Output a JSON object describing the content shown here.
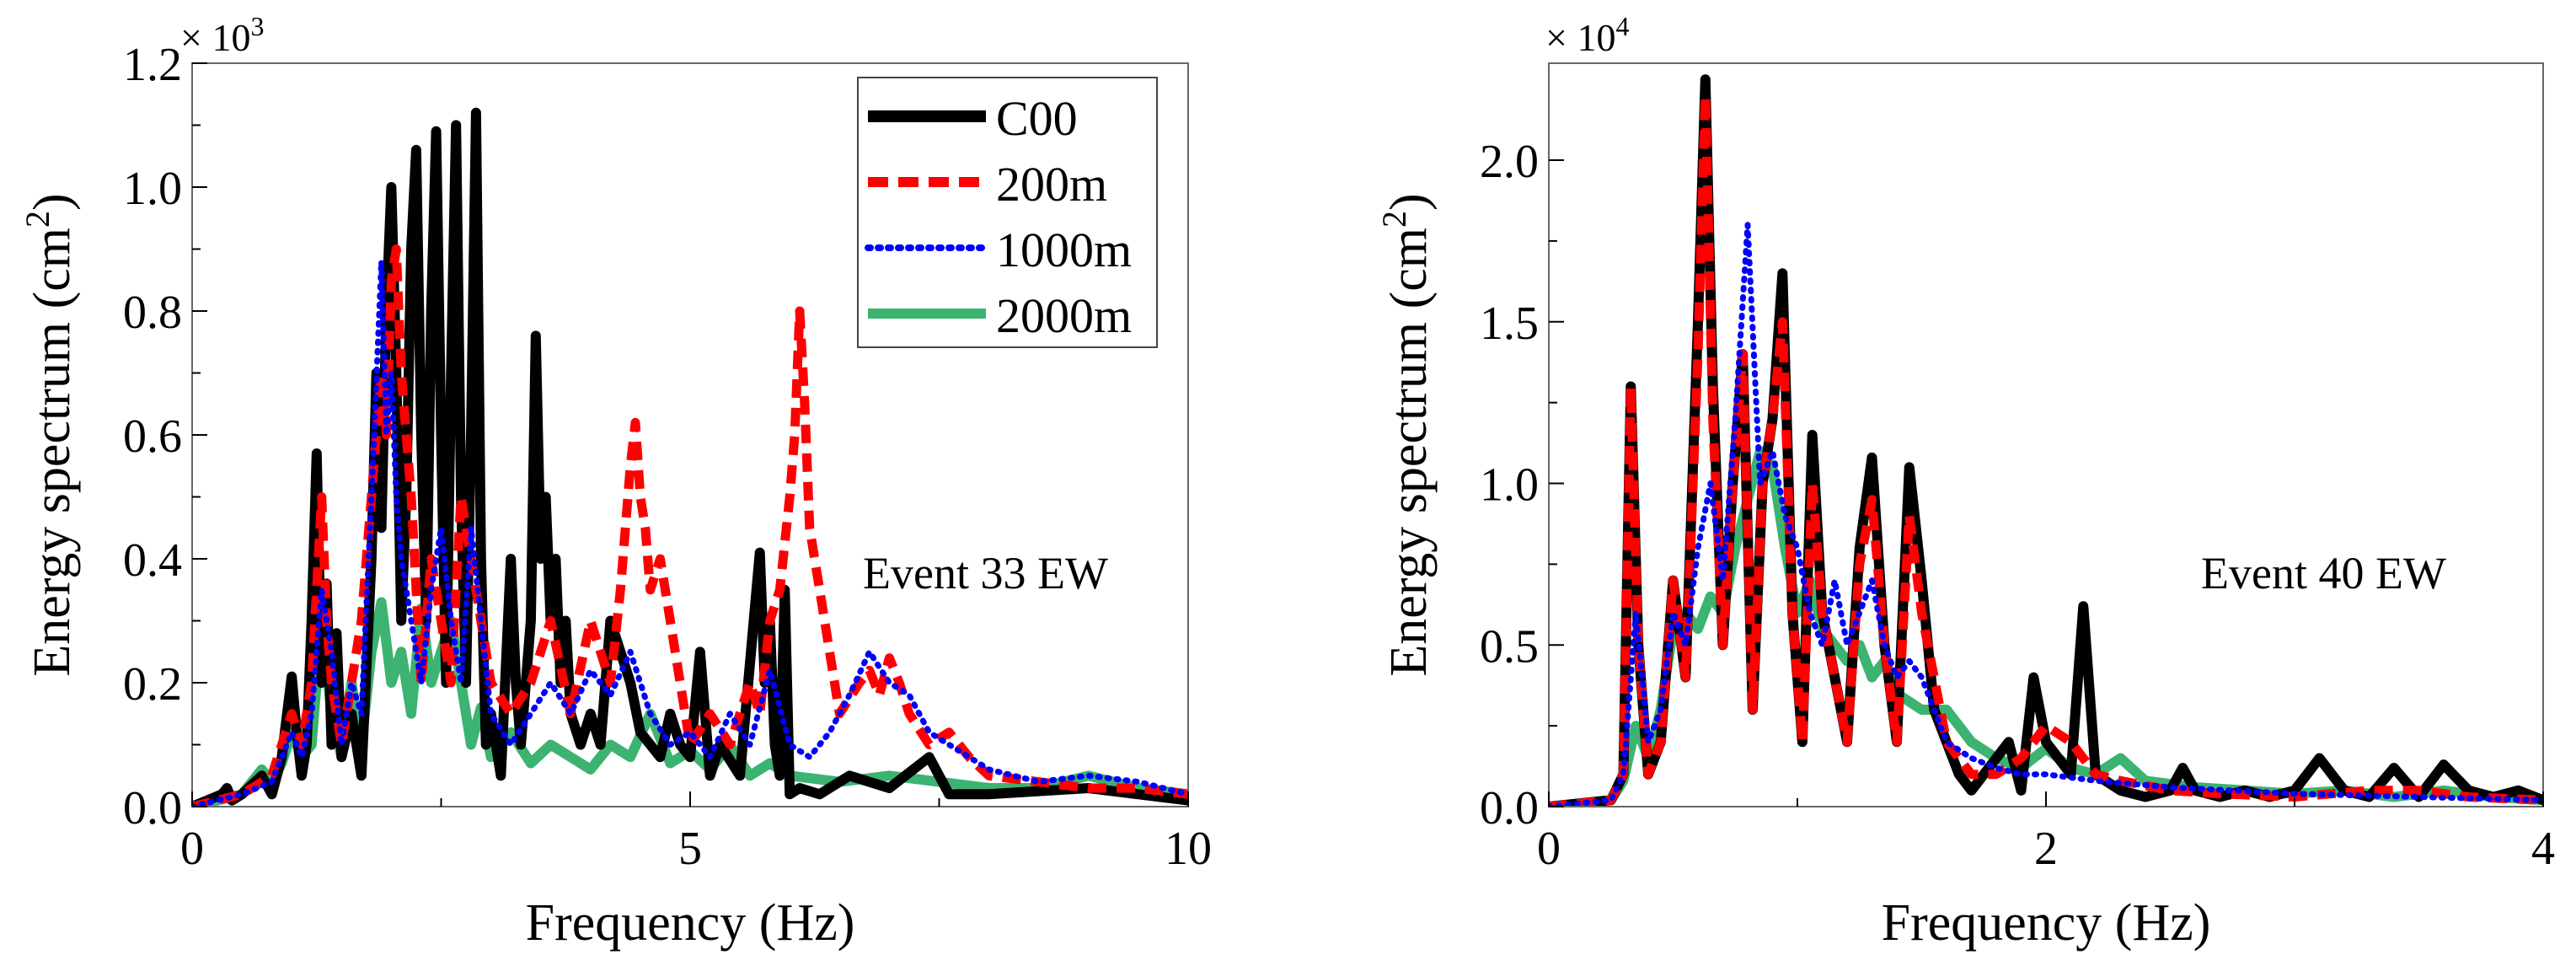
{
  "chart_data": [
    {
      "type": "line",
      "xlabel": "Frequency (Hz)",
      "ylabel_main": "Energy spectrum (cm",
      "ylabel_sup": "2",
      "ylabel_tail": ")",
      "multiplier_base": "× 10",
      "multiplier_exp": "3",
      "annotation": "Event 33 EW",
      "xlim": [
        0,
        10
      ],
      "ylim": [
        0,
        1.2
      ],
      "x_ticks": [
        0,
        5,
        10
      ],
      "x_tick_labels": [
        "0",
        "5",
        "10"
      ],
      "y_ticks": [
        0,
        0.2,
        0.4,
        0.6,
        0.8,
        1.0,
        1.2
      ],
      "y_tick_labels": [
        "0.0",
        "0.2",
        "0.4",
        "0.6",
        "0.8",
        "1.0",
        "1.2"
      ],
      "legend_position": "top-right",
      "series": [
        {
          "name": "C00",
          "color": "#000000",
          "dash": "solid",
          "x": [
            0,
            0.3,
            0.35,
            0.4,
            0.5,
            0.7,
            0.8,
            0.9,
            1.0,
            1.05,
            1.1,
            1.15,
            1.2,
            1.25,
            1.3,
            1.35,
            1.4,
            1.45,
            1.5,
            1.6,
            1.7,
            1.8,
            1.85,
            1.9,
            1.95,
            2.0,
            2.05,
            2.1,
            2.15,
            2.2,
            2.25,
            2.3,
            2.35,
            2.4,
            2.45,
            2.5,
            2.55,
            2.6,
            2.65,
            2.7,
            2.75,
            2.8,
            2.85,
            2.9,
            2.95,
            3.0,
            3.1,
            3.2,
            3.25,
            3.3,
            3.4,
            3.45,
            3.5,
            3.55,
            3.6,
            3.65,
            3.7,
            3.75,
            3.8,
            3.9,
            4.0,
            4.1,
            4.2,
            4.3,
            4.4,
            4.5,
            4.6,
            4.7,
            4.8,
            4.9,
            5.0,
            5.1,
            5.2,
            5.3,
            5.5,
            5.7,
            5.75,
            5.8,
            5.85,
            5.9,
            5.95,
            6.0,
            6.1,
            6.3,
            6.6,
            7.0,
            7.4,
            7.5,
            7.6,
            8.0,
            9.0,
            9.5,
            10.0
          ],
          "y": [
            0,
            0.02,
            0.03,
            0.01,
            0.02,
            0.05,
            0.02,
            0.08,
            0.21,
            0.12,
            0.05,
            0.1,
            0.3,
            0.57,
            0.2,
            0.36,
            0.1,
            0.28,
            0.08,
            0.15,
            0.05,
            0.4,
            0.7,
            0.45,
            0.8,
            1.0,
            0.7,
            0.3,
            0.5,
            0.9,
            1.06,
            0.6,
            0.3,
            0.8,
            1.09,
            0.6,
            0.2,
            0.7,
            1.1,
            0.5,
            0.2,
            0.6,
            1.12,
            0.4,
            0.1,
            0.15,
            0.05,
            0.4,
            0.2,
            0.1,
            0.3,
            0.76,
            0.4,
            0.5,
            0.3,
            0.4,
            0.2,
            0.3,
            0.15,
            0.1,
            0.15,
            0.1,
            0.3,
            0.25,
            0.2,
            0.12,
            0.1,
            0.08,
            0.15,
            0.1,
            0.08,
            0.25,
            0.05,
            0.1,
            0.05,
            0.41,
            0.2,
            0.3,
            0.1,
            0.05,
            0.35,
            0.02,
            0.03,
            0.02,
            0.05,
            0.03,
            0.08,
            0.05,
            0.02,
            0.02,
            0.03,
            0.02,
            0.01
          ]
        },
        {
          "name": "200m",
          "color": "#ff0000",
          "dash": "dashed",
          "x": [
            0,
            0.5,
            0.8,
            1.0,
            1.1,
            1.2,
            1.3,
            1.35,
            1.4,
            1.5,
            1.7,
            1.8,
            1.9,
            1.95,
            2.0,
            2.05,
            2.1,
            2.2,
            2.3,
            2.4,
            2.5,
            2.6,
            2.7,
            2.8,
            2.9,
            3.0,
            3.2,
            3.4,
            3.6,
            3.8,
            4.0,
            4.2,
            4.3,
            4.4,
            4.45,
            4.5,
            4.55,
            4.6,
            4.7,
            4.8,
            5.0,
            5.2,
            5.4,
            5.6,
            5.7,
            5.8,
            5.9,
            6.0,
            6.05,
            6.1,
            6.15,
            6.2,
            6.3,
            6.5,
            6.7,
            6.8,
            6.9,
            7.0,
            7.1,
            7.2,
            7.4,
            7.6,
            7.8,
            8.0,
            8.5,
            9.0,
            9.5,
            10.0
          ],
          "y": [
            0,
            0.02,
            0.05,
            0.15,
            0.1,
            0.2,
            0.5,
            0.3,
            0.2,
            0.1,
            0.3,
            0.5,
            0.7,
            0.6,
            0.85,
            0.9,
            0.7,
            0.5,
            0.2,
            0.4,
            0.3,
            0.2,
            0.5,
            0.4,
            0.3,
            0.2,
            0.15,
            0.2,
            0.3,
            0.15,
            0.3,
            0.2,
            0.35,
            0.55,
            0.62,
            0.5,
            0.45,
            0.35,
            0.4,
            0.3,
            0.1,
            0.15,
            0.1,
            0.2,
            0.15,
            0.3,
            0.35,
            0.5,
            0.6,
            0.8,
            0.65,
            0.45,
            0.35,
            0.15,
            0.2,
            0.22,
            0.18,
            0.24,
            0.2,
            0.15,
            0.1,
            0.12,
            0.08,
            0.05,
            0.04,
            0.03,
            0.03,
            0.02
          ]
        },
        {
          "name": "1000m",
          "color": "#0000ff",
          "dash": "dotted",
          "x": [
            0,
            0.5,
            0.8,
            1.0,
            1.1,
            1.2,
            1.3,
            1.4,
            1.5,
            1.6,
            1.7,
            1.8,
            1.9,
            1.95,
            2.0,
            2.05,
            2.1,
            2.2,
            2.3,
            2.4,
            2.5,
            2.6,
            2.7,
            2.8,
            2.9,
            3.0,
            3.2,
            3.4,
            3.6,
            3.8,
            4.0,
            4.2,
            4.4,
            4.6,
            4.8,
            5.0,
            5.2,
            5.4,
            5.6,
            5.8,
            6.0,
            6.2,
            6.4,
            6.6,
            6.8,
            7.0,
            7.2,
            7.4,
            7.6,
            7.8,
            8.0,
            8.5,
            9.0,
            9.5,
            10.0
          ],
          "y": [
            0,
            0.02,
            0.04,
            0.12,
            0.08,
            0.15,
            0.35,
            0.25,
            0.1,
            0.2,
            0.15,
            0.5,
            0.88,
            0.6,
            0.7,
            0.5,
            0.4,
            0.3,
            0.2,
            0.35,
            0.45,
            0.3,
            0.2,
            0.45,
            0.3,
            0.15,
            0.1,
            0.15,
            0.2,
            0.15,
            0.22,
            0.18,
            0.25,
            0.15,
            0.1,
            0.12,
            0.08,
            0.15,
            0.1,
            0.22,
            0.1,
            0.08,
            0.12,
            0.18,
            0.25,
            0.2,
            0.18,
            0.12,
            0.1,
            0.08,
            0.06,
            0.04,
            0.05,
            0.04,
            0.02
          ]
        },
        {
          "name": "2000m",
          "color": "#3cb371",
          "dash": "solid",
          "x": [
            0,
            0.5,
            0.7,
            0.8,
            0.9,
            1.0,
            1.1,
            1.2,
            1.3,
            1.4,
            1.5,
            1.6,
            1.7,
            1.8,
            1.9,
            2.0,
            2.1,
            2.2,
            2.3,
            2.4,
            2.5,
            2.6,
            2.7,
            2.8,
            2.9,
            3.0,
            3.2,
            3.4,
            3.6,
            3.8,
            4.0,
            4.2,
            4.4,
            4.6,
            4.8,
            5.0,
            5.2,
            5.4,
            5.6,
            5.8,
            6.0,
            6.5,
            7.0,
            7.5,
            8.0,
            8.5,
            9.0,
            9.5,
            10.0
          ],
          "y": [
            0,
            0.02,
            0.06,
            0.04,
            0.07,
            0.12,
            0.08,
            0.1,
            0.3,
            0.15,
            0.08,
            0.2,
            0.1,
            0.25,
            0.33,
            0.2,
            0.25,
            0.15,
            0.32,
            0.2,
            0.25,
            0.3,
            0.2,
            0.1,
            0.16,
            0.08,
            0.12,
            0.07,
            0.1,
            0.08,
            0.06,
            0.1,
            0.08,
            0.15,
            0.07,
            0.09,
            0.06,
            0.1,
            0.05,
            0.07,
            0.05,
            0.04,
            0.05,
            0.04,
            0.03,
            0.03,
            0.05,
            0.03,
            0.02
          ]
        }
      ]
    },
    {
      "type": "line",
      "xlabel": "Frequency (Hz)",
      "ylabel_main": "Energy spectrum (cm",
      "ylabel_sup": "2",
      "ylabel_tail": ")",
      "multiplier_base": "× 10",
      "multiplier_exp": "4",
      "annotation": "Event 40 EW",
      "xlim": [
        0,
        4
      ],
      "ylim": [
        0,
        2.3
      ],
      "x_ticks": [
        0,
        2,
        4
      ],
      "x_tick_labels": [
        "0",
        "2",
        "4"
      ],
      "y_ticks": [
        0,
        0.5,
        1.0,
        1.5,
        2.0
      ],
      "y_tick_labels": [
        "0.0",
        "0.5",
        "1.0",
        "1.5",
        "2.0"
      ],
      "series": [
        {
          "name": "C00",
          "color": "#000000",
          "dash": "solid",
          "x": [
            0,
            0.25,
            0.3,
            0.33,
            0.36,
            0.4,
            0.45,
            0.5,
            0.55,
            0.6,
            0.63,
            0.66,
            0.7,
            0.74,
            0.78,
            0.82,
            0.86,
            0.9,
            0.94,
            0.98,
            1.02,
            1.06,
            1.1,
            1.15,
            1.2,
            1.25,
            1.3,
            1.35,
            1.4,
            1.45,
            1.5,
            1.55,
            1.6,
            1.65,
            1.7,
            1.75,
            1.8,
            1.85,
            1.9,
            1.95,
            2.0,
            2.05,
            2.1,
            2.15,
            2.2,
            2.3,
            2.4,
            2.5,
            2.55,
            2.6,
            2.7,
            2.8,
            2.9,
            3.0,
            3.1,
            3.2,
            3.3,
            3.4,
            3.5,
            3.6,
            3.7,
            3.8,
            3.9,
            4.0
          ],
          "y": [
            0,
            0.02,
            0.1,
            1.3,
            0.5,
            0.1,
            0.2,
            0.7,
            0.4,
            1.5,
            2.25,
            1.3,
            0.5,
            1.0,
            1.4,
            0.3,
            1.0,
            1.2,
            1.65,
            0.6,
            0.2,
            1.15,
            0.6,
            0.4,
            0.2,
            0.8,
            1.08,
            0.5,
            0.2,
            1.05,
            0.7,
            0.3,
            0.2,
            0.1,
            0.05,
            0.1,
            0.15,
            0.2,
            0.05,
            0.4,
            0.2,
            0.15,
            0.1,
            0.62,
            0.1,
            0.05,
            0.03,
            0.05,
            0.12,
            0.05,
            0.03,
            0.05,
            0.03,
            0.05,
            0.15,
            0.05,
            0.03,
            0.12,
            0.03,
            0.13,
            0.05,
            0.03,
            0.05,
            0.02
          ]
        },
        {
          "name": "200m",
          "color": "#ff0000",
          "dash": "dashed",
          "x": [
            0,
            0.25,
            0.3,
            0.33,
            0.36,
            0.4,
            0.45,
            0.5,
            0.55,
            0.6,
            0.63,
            0.66,
            0.7,
            0.74,
            0.78,
            0.82,
            0.86,
            0.9,
            0.94,
            0.98,
            1.02,
            1.06,
            1.1,
            1.15,
            1.2,
            1.25,
            1.3,
            1.35,
            1.4,
            1.45,
            1.5,
            1.6,
            1.7,
            1.8,
            1.9,
            2.0,
            2.1,
            2.2,
            2.3,
            2.5,
            2.7,
            3.0,
            3.3,
            3.5,
            3.7,
            4.0
          ],
          "y": [
            0,
            0.02,
            0.1,
            1.3,
            0.5,
            0.1,
            0.2,
            0.7,
            0.4,
            1.4,
            2.2,
            1.2,
            0.5,
            1.0,
            1.4,
            0.3,
            1.0,
            1.2,
            1.5,
            0.6,
            0.2,
            1.0,
            0.6,
            0.4,
            0.2,
            0.75,
            0.95,
            0.5,
            0.2,
            0.9,
            0.6,
            0.2,
            0.1,
            0.1,
            0.15,
            0.25,
            0.2,
            0.1,
            0.08,
            0.05,
            0.04,
            0.03,
            0.05,
            0.05,
            0.03,
            0.02
          ]
        },
        {
          "name": "1000m",
          "color": "#0000ff",
          "dash": "dotted",
          "x": [
            0,
            0.25,
            0.3,
            0.35,
            0.4,
            0.45,
            0.5,
            0.55,
            0.6,
            0.65,
            0.7,
            0.75,
            0.8,
            0.85,
            0.9,
            0.95,
            1.0,
            1.05,
            1.1,
            1.15,
            1.2,
            1.25,
            1.3,
            1.35,
            1.4,
            1.45,
            1.5,
            1.55,
            1.6,
            1.7,
            1.8,
            1.9,
            2.0,
            2.2,
            2.5,
            3.0,
            3.5,
            4.0
          ],
          "y": [
            0,
            0.02,
            0.1,
            0.6,
            0.2,
            0.3,
            0.6,
            0.5,
            0.8,
            1.0,
            0.7,
            1.2,
            1.8,
            1.0,
            1.1,
            0.9,
            0.8,
            0.6,
            0.5,
            0.7,
            0.5,
            0.6,
            0.7,
            0.5,
            0.4,
            0.45,
            0.4,
            0.3,
            0.2,
            0.15,
            0.12,
            0.1,
            0.1,
            0.08,
            0.06,
            0.04,
            0.03,
            0.02
          ]
        },
        {
          "name": "2000m",
          "color": "#3cb371",
          "dash": "solid",
          "x": [
            0,
            0.25,
            0.3,
            0.35,
            0.4,
            0.45,
            0.5,
            0.55,
            0.6,
            0.65,
            0.7,
            0.75,
            0.8,
            0.85,
            0.9,
            0.95,
            1.0,
            1.05,
            1.1,
            1.15,
            1.2,
            1.25,
            1.3,
            1.35,
            1.4,
            1.5,
            1.6,
            1.7,
            1.8,
            1.9,
            2.0,
            2.1,
            2.2,
            2.3,
            2.4,
            2.6,
            2.8,
            3.0,
            3.2,
            3.4,
            3.6,
            3.8,
            4.0
          ],
          "y": [
            0,
            0.02,
            0.08,
            0.25,
            0.15,
            0.3,
            0.55,
            0.6,
            0.55,
            0.65,
            0.6,
            0.8,
            0.95,
            1.1,
            1.05,
            0.8,
            0.6,
            0.7,
            0.55,
            0.5,
            0.45,
            0.5,
            0.4,
            0.45,
            0.35,
            0.3,
            0.3,
            0.2,
            0.15,
            0.12,
            0.18,
            0.12,
            0.1,
            0.15,
            0.08,
            0.06,
            0.05,
            0.04,
            0.05,
            0.03,
            0.05,
            0.03,
            0.02
          ]
        }
      ]
    }
  ]
}
